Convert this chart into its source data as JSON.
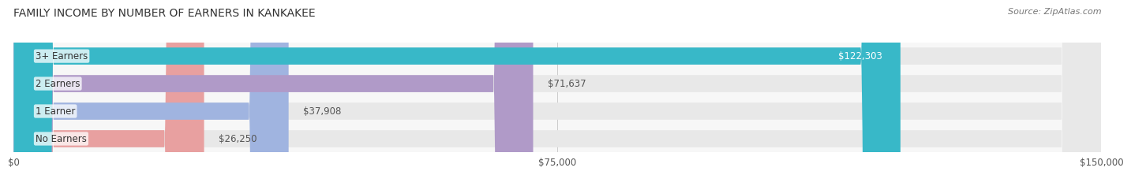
{
  "title": "FAMILY INCOME BY NUMBER OF EARNERS IN KANKAKEE",
  "source": "Source: ZipAtlas.com",
  "categories": [
    "No Earners",
    "1 Earner",
    "2 Earners",
    "3+ Earners"
  ],
  "values": [
    26250,
    37908,
    71637,
    122303
  ],
  "bar_colors": [
    "#e8a0a0",
    "#a0b4e0",
    "#b09ac8",
    "#38b8c8"
  ],
  "label_colors": [
    "#555555",
    "#555555",
    "#555555",
    "#ffffff"
  ],
  "bar_bg_color": "#e8e8e8",
  "value_labels": [
    "$26,250",
    "$37,908",
    "$71,637",
    "$122,303"
  ],
  "x_ticks": [
    0,
    75000,
    150000
  ],
  "x_tick_labels": [
    "$0",
    "$75,000",
    "$150,000"
  ],
  "xlim": [
    0,
    150000
  ],
  "bar_height": 0.62,
  "fig_bg_color": "#ffffff",
  "axes_bg_color": "#f7f7f7",
  "title_fontsize": 10,
  "label_fontsize": 8.5,
  "tick_fontsize": 8.5,
  "source_fontsize": 8
}
